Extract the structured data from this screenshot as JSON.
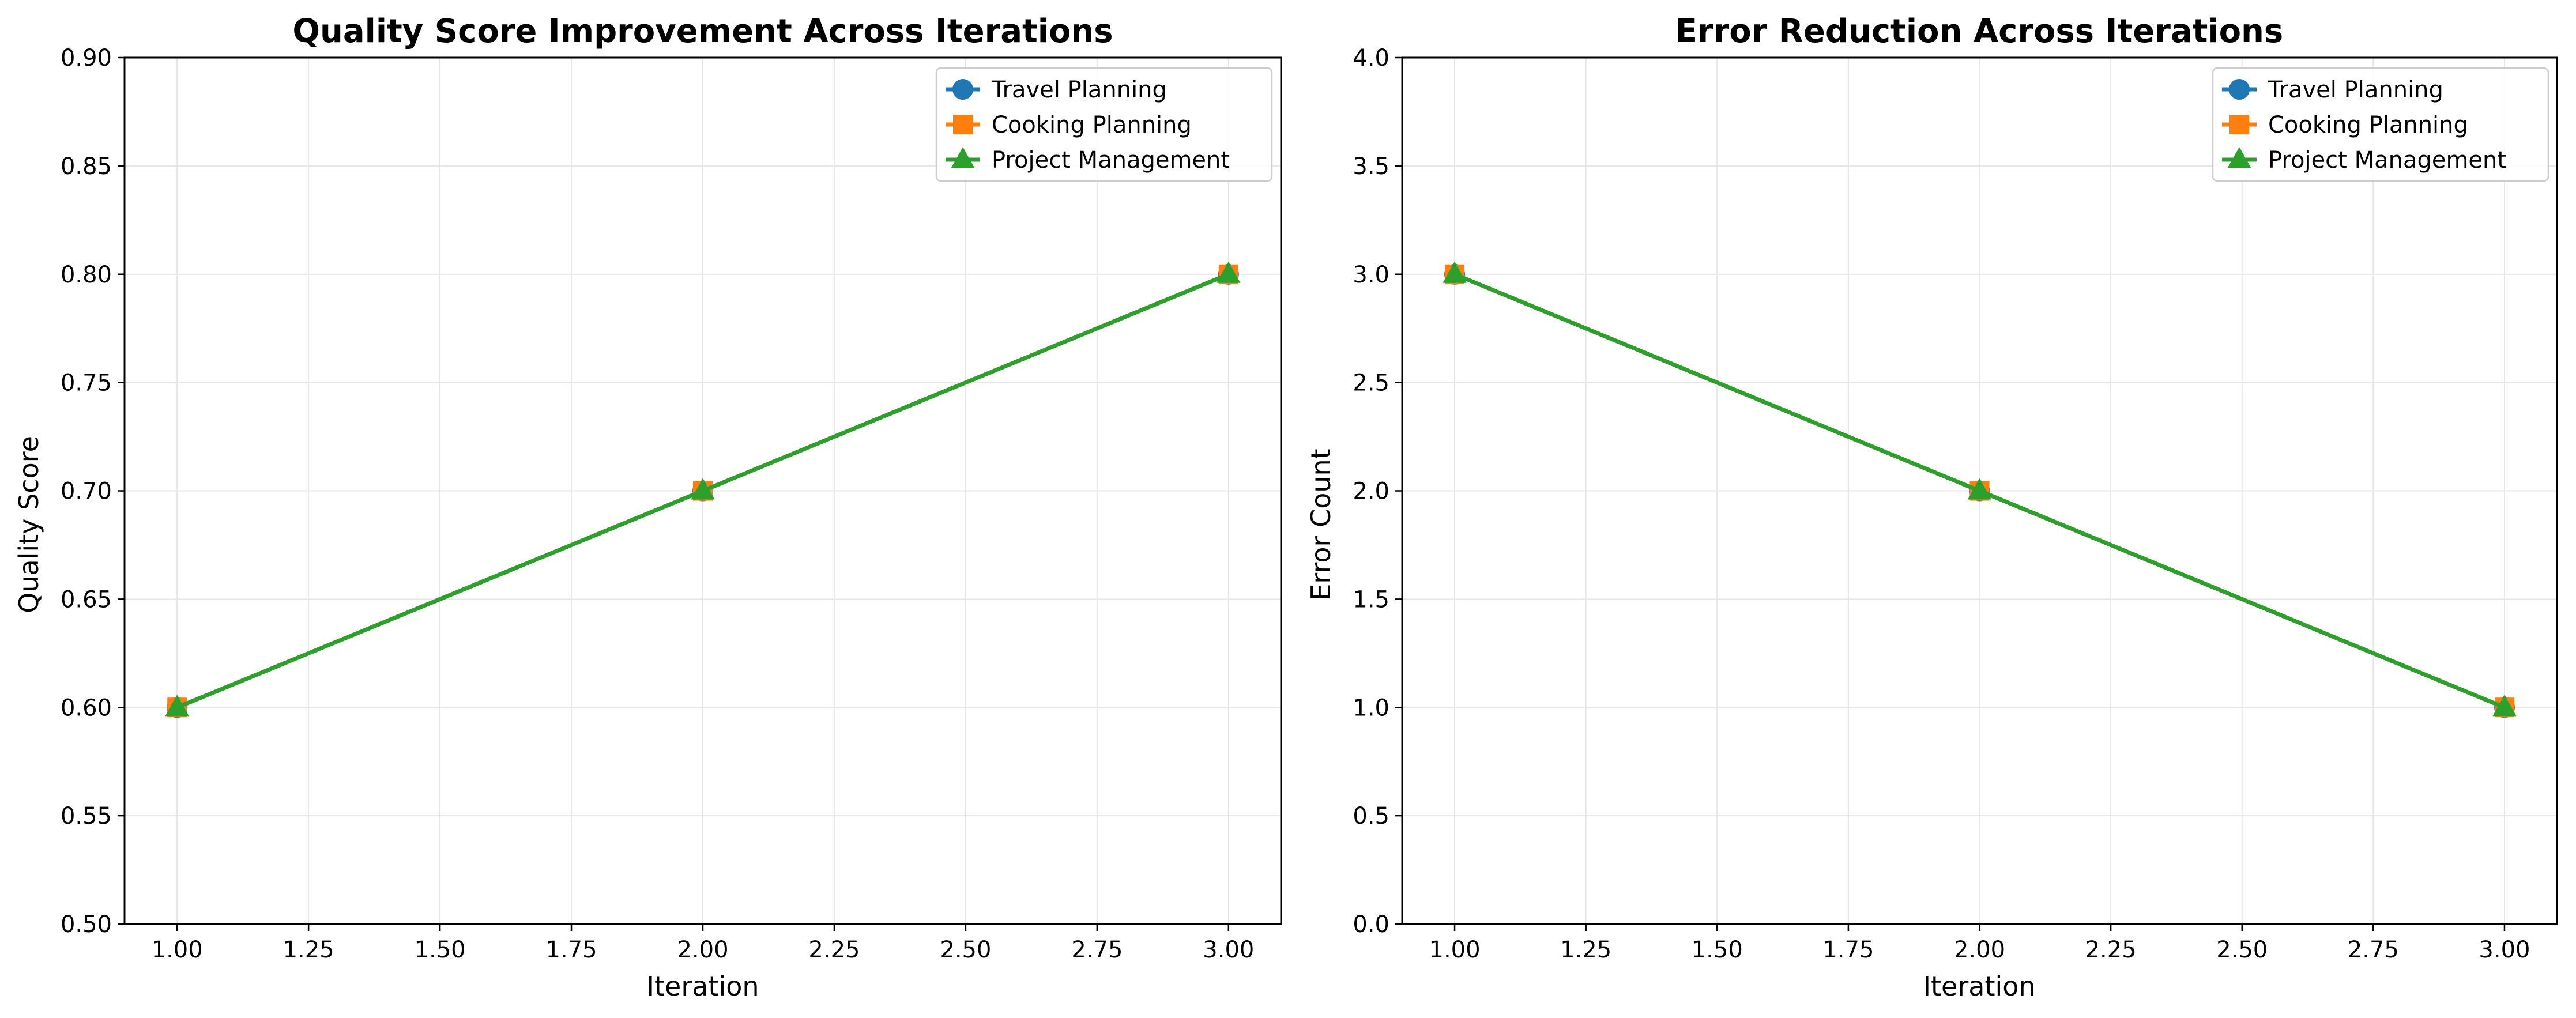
{
  "chart_data": [
    {
      "type": "line",
      "title": "Quality Score Improvement Across Iterations",
      "xlabel": "Iteration",
      "ylabel": "Quality Score",
      "x": [
        1.0,
        2.0,
        3.0
      ],
      "xlim": [
        0.9,
        3.1
      ],
      "ylim": [
        0.5,
        0.9
      ],
      "xticks": [
        "1.00",
        "1.25",
        "1.50",
        "1.75",
        "2.00",
        "2.25",
        "2.50",
        "2.75",
        "3.00"
      ],
      "yticks": [
        "0.50",
        "0.55",
        "0.60",
        "0.65",
        "0.70",
        "0.75",
        "0.80",
        "0.85",
        "0.90"
      ],
      "grid": true,
      "legend_position": "top-right",
      "series": [
        {
          "name": "Travel Planning",
          "values": [
            0.6,
            0.7,
            0.8
          ],
          "color": "#1f77b4",
          "marker": "circle"
        },
        {
          "name": "Cooking Planning",
          "values": [
            0.6,
            0.7,
            0.8
          ],
          "color": "#ff7f0e",
          "marker": "square"
        },
        {
          "name": "Project Management",
          "values": [
            0.6,
            0.7,
            0.8
          ],
          "color": "#2ca02c",
          "marker": "triangle"
        }
      ]
    },
    {
      "type": "line",
      "title": "Error Reduction Across Iterations",
      "xlabel": "Iteration",
      "ylabel": "Error Count",
      "x": [
        1.0,
        2.0,
        3.0
      ],
      "xlim": [
        0.9,
        3.1
      ],
      "ylim": [
        0.0,
        4.0
      ],
      "xticks": [
        "1.00",
        "1.25",
        "1.50",
        "1.75",
        "2.00",
        "2.25",
        "2.50",
        "2.75",
        "3.00"
      ],
      "yticks": [
        "0.0",
        "0.5",
        "1.0",
        "1.5",
        "2.0",
        "2.5",
        "3.0",
        "3.5",
        "4.0"
      ],
      "grid": true,
      "legend_position": "top-right",
      "series": [
        {
          "name": "Travel Planning",
          "values": [
            3,
            2,
            1
          ],
          "color": "#1f77b4",
          "marker": "circle"
        },
        {
          "name": "Cooking Planning",
          "values": [
            3,
            2,
            1
          ],
          "color": "#ff7f0e",
          "marker": "square"
        },
        {
          "name": "Project Management",
          "values": [
            3,
            2,
            1
          ],
          "color": "#2ca02c",
          "marker": "triangle"
        }
      ]
    }
  ]
}
